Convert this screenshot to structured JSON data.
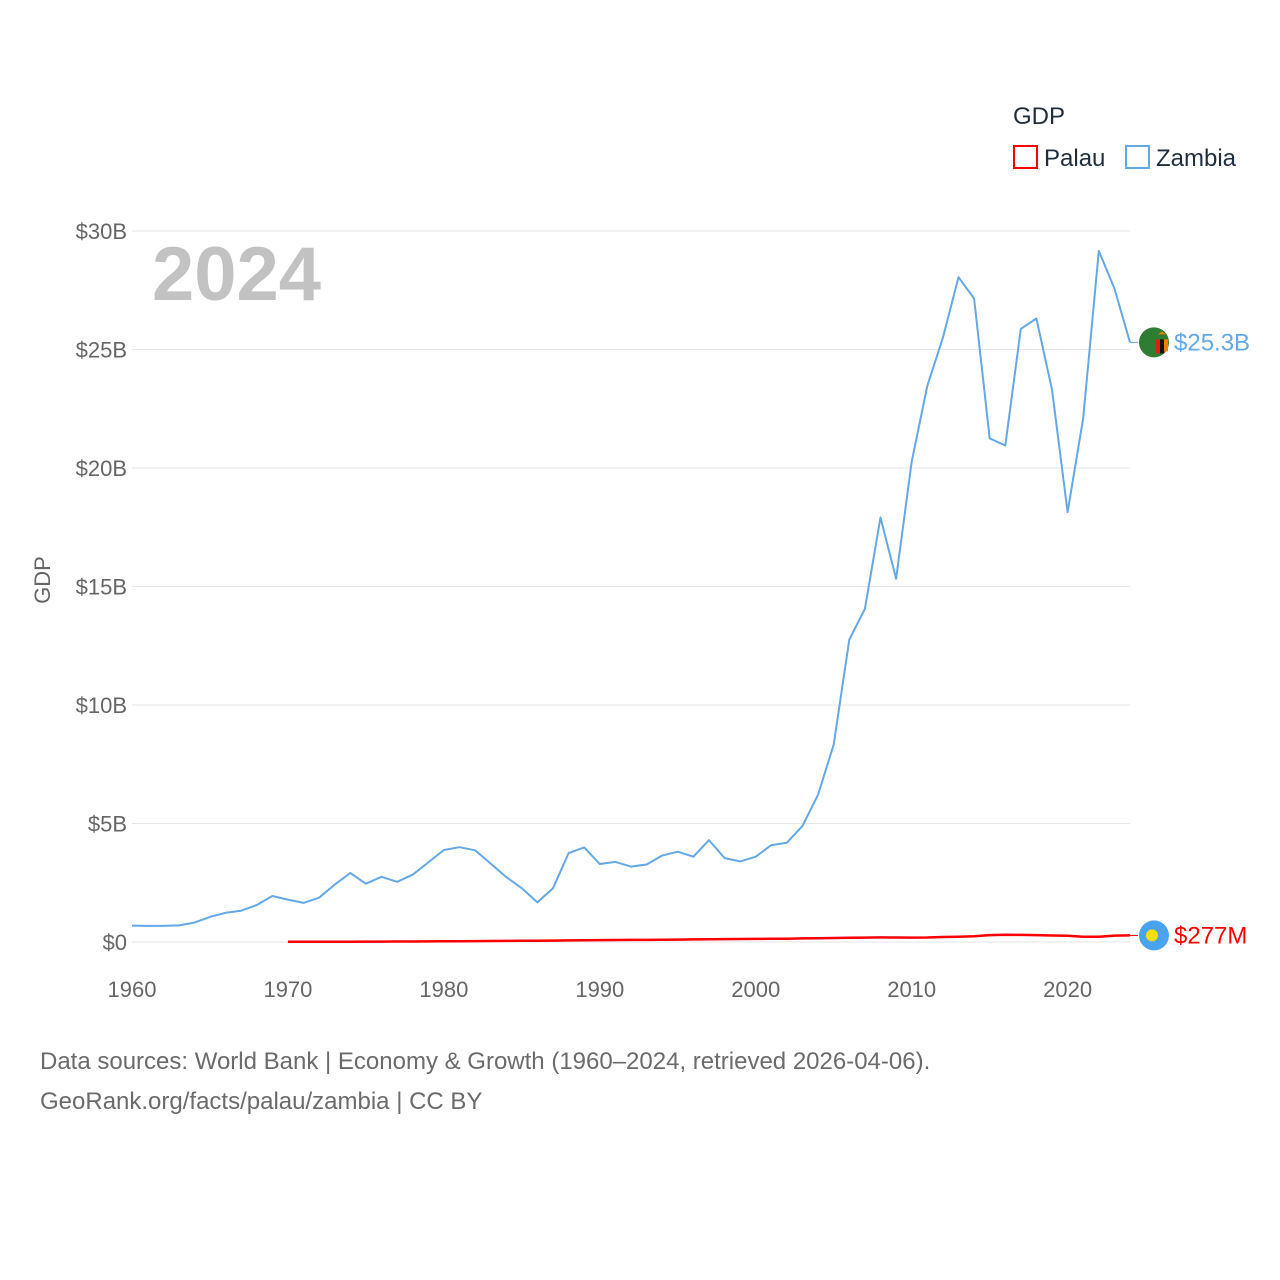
{
  "chart_data": {
    "type": "line",
    "title": "",
    "xlabel": "",
    "ylabel": "GDP",
    "xlim": [
      1960,
      2024
    ],
    "ylim": [
      0,
      30000000000
    ],
    "x_ticks": [
      1960,
      1970,
      1980,
      1990,
      2000,
      2010,
      2020
    ],
    "x_tick_labels": [
      "1960",
      "1970",
      "1980",
      "1990",
      "2000",
      "2010",
      "2020"
    ],
    "y_ticks": [
      0,
      5000000000,
      10000000000,
      15000000000,
      20000000000,
      25000000000,
      30000000000
    ],
    "y_tick_labels": [
      "$0",
      "$5B",
      "$10B",
      "$15B",
      "$20B",
      "$25B",
      "$30B"
    ],
    "grid": true,
    "year_label": "2024",
    "legend": {
      "title": "GDP",
      "position": "top-right",
      "entries": [
        "Palau",
        "Zambia"
      ]
    },
    "series": [
      {
        "name": "Palau",
        "color": "#ff0000",
        "end_label": "$277M",
        "end_icon": "palau-flag-icon",
        "start_year": 1970,
        "values": [
          10000000,
          11000000,
          12000000,
          13000000,
          14000000,
          16000000,
          18000000,
          20000000,
          23000000,
          26000000,
          30000000,
          34000000,
          38000000,
          42000000,
          46000000,
          50000000,
          55000000,
          60000000,
          66000000,
          72000000,
          80000000,
          85000000,
          90000000,
          88000000,
          92000000,
          100000000,
          110000000,
          120000000,
          122000000,
          125000000,
          130000000,
          135000000,
          140000000,
          150000000,
          160000000,
          170000000,
          180000000,
          185000000,
          195000000,
          190000000,
          185000000,
          190000000,
          210000000,
          220000000,
          240000000,
          290000000,
          310000000,
          300000000,
          290000000,
          275000000,
          260000000,
          220000000,
          225000000,
          270000000,
          277000000
        ]
      },
      {
        "name": "Zambia",
        "color": "#64a8e6",
        "end_label": "$25.3B",
        "end_icon": "zambia-flag-icon",
        "start_year": 1960,
        "values": [
          690000000,
          680000000,
          680000000,
          700000000,
          820000000,
          1060000000,
          1230000000,
          1320000000,
          1560000000,
          1940000000,
          1790000000,
          1650000000,
          1870000000,
          2420000000,
          2910000000,
          2460000000,
          2750000000,
          2540000000,
          2840000000,
          3360000000,
          3880000000,
          4000000000,
          3870000000,
          3310000000,
          2740000000,
          2270000000,
          1670000000,
          2270000000,
          3750000000,
          3990000000,
          3290000000,
          3380000000,
          3180000000,
          3270000000,
          3650000000,
          3810000000,
          3600000000,
          4300000000,
          3540000000,
          3400000000,
          3600000000,
          4090000000,
          4190000000,
          4900000000,
          6220000000,
          8330000000,
          12760000000,
          14060000000,
          17910000000,
          15330000000,
          20270000000,
          23460000000,
          25500000000,
          28050000000,
          27150000000,
          21250000000,
          20950000000,
          25870000000,
          26310000000,
          23310000000,
          18140000000,
          22100000000,
          29160000000,
          27580000000,
          25300000000
        ]
      }
    ]
  },
  "footer": {
    "line1": "Data sources: World Bank | Economy & Growth (1960–2024, retrieved 2026-04-06).",
    "line2": "GeoRank.org/facts/palau/zambia | CC BY"
  }
}
